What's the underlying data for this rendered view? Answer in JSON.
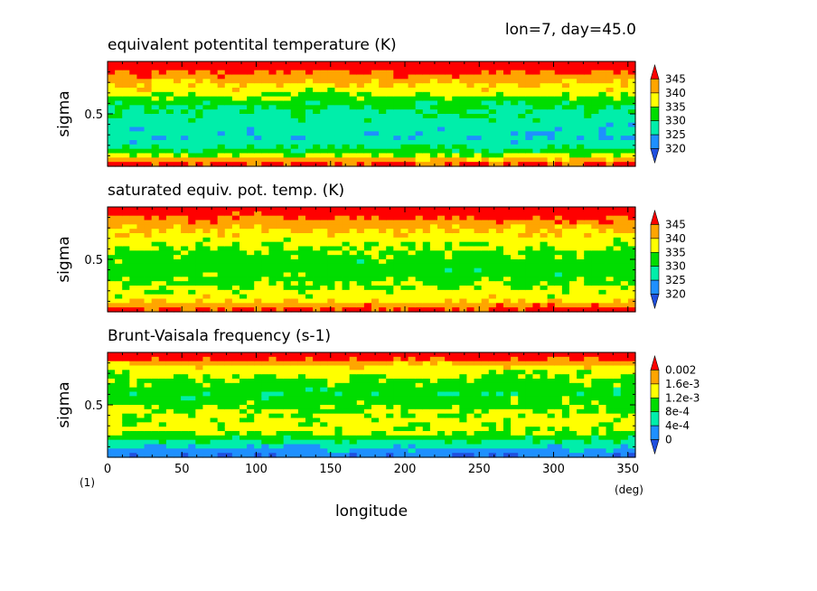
{
  "header": {
    "run_info": "lon=7, day=45.0"
  },
  "footer": {
    "figure_number": "(1)",
    "x_unit": "(deg)",
    "x_label": "longitude"
  },
  "palette": {
    "red": "#ff0000",
    "orange": "#ffa500",
    "yellow": "#ffff00",
    "green": "#00dd00",
    "cyan": "#00eeaa",
    "blue": "#1e90ff",
    "deep_blue": "#2050e0"
  },
  "chart_data": [
    {
      "type": "heatmap",
      "title": "equivalent potentital temperature (K)",
      "ylabel": "sigma",
      "yticks": [
        "0.5"
      ],
      "xlim": [
        0,
        355
      ],
      "ylim": [
        1,
        0
      ],
      "xticks": [
        0,
        50,
        100,
        150,
        200,
        250,
        300,
        350
      ],
      "colorbar": {
        "levels": [
          "345",
          "340",
          "335",
          "330",
          "325",
          "320"
        ],
        "colors": [
          "#ff0000",
          "#ffa500",
          "#ffff00",
          "#00dd00",
          "#00eeaa",
          "#1e90ff",
          "#2050e0"
        ]
      },
      "z_at_sigma": {
        "sigma": [
          0.05,
          0.15,
          0.28,
          0.4,
          0.5,
          0.62,
          0.75,
          0.88,
          0.97
        ],
        "values": [
          348,
          343,
          337,
          331,
          329,
          327,
          326,
          333,
          346
        ]
      }
    },
    {
      "type": "heatmap",
      "title": "saturated equiv. pot. temp. (K)",
      "ylabel": "sigma",
      "yticks": [
        "0.5"
      ],
      "xlim": [
        0,
        355
      ],
      "ylim": [
        1,
        0
      ],
      "xticks": [
        0,
        50,
        100,
        150,
        200,
        250,
        300,
        350
      ],
      "colorbar": {
        "levels": [
          "345",
          "340",
          "335",
          "330",
          "325",
          "320"
        ],
        "colors": [
          "#ff0000",
          "#ffa500",
          "#ffff00",
          "#00dd00",
          "#00eeaa",
          "#1e90ff",
          "#2050e0"
        ]
      },
      "z_at_sigma": {
        "sigma": [
          0.05,
          0.15,
          0.28,
          0.4,
          0.5,
          0.62,
          0.75,
          0.88,
          0.97
        ],
        "values": [
          348,
          343,
          338,
          335,
          333,
          332,
          335,
          338,
          346
        ]
      }
    },
    {
      "type": "heatmap",
      "title": "Brunt-Vaisala frequency (s-1)",
      "ylabel": "sigma",
      "yticks": [
        "0.5"
      ],
      "xlim": [
        0,
        355
      ],
      "ylim": [
        1,
        0
      ],
      "xticks": [
        0,
        50,
        100,
        150,
        200,
        250,
        300,
        350
      ],
      "colorbar": {
        "levels": [
          "0.002",
          "1.6e-3",
          "1.2e-3",
          "8e-4",
          "4e-4",
          "0"
        ],
        "colors": [
          "#ff0000",
          "#ffa500",
          "#ffff00",
          "#00dd00",
          "#00eeaa",
          "#1e90ff",
          "#2050e0"
        ]
      },
      "z_at_sigma": {
        "sigma": [
          0.05,
          0.15,
          0.28,
          0.4,
          0.5,
          0.62,
          0.75,
          0.88,
          0.97
        ],
        "values": [
          0.0022,
          0.0014,
          0.0011,
          0.0009,
          0.0011,
          0.0013,
          0.0013,
          0.0006,
          0.0001
        ]
      }
    }
  ]
}
